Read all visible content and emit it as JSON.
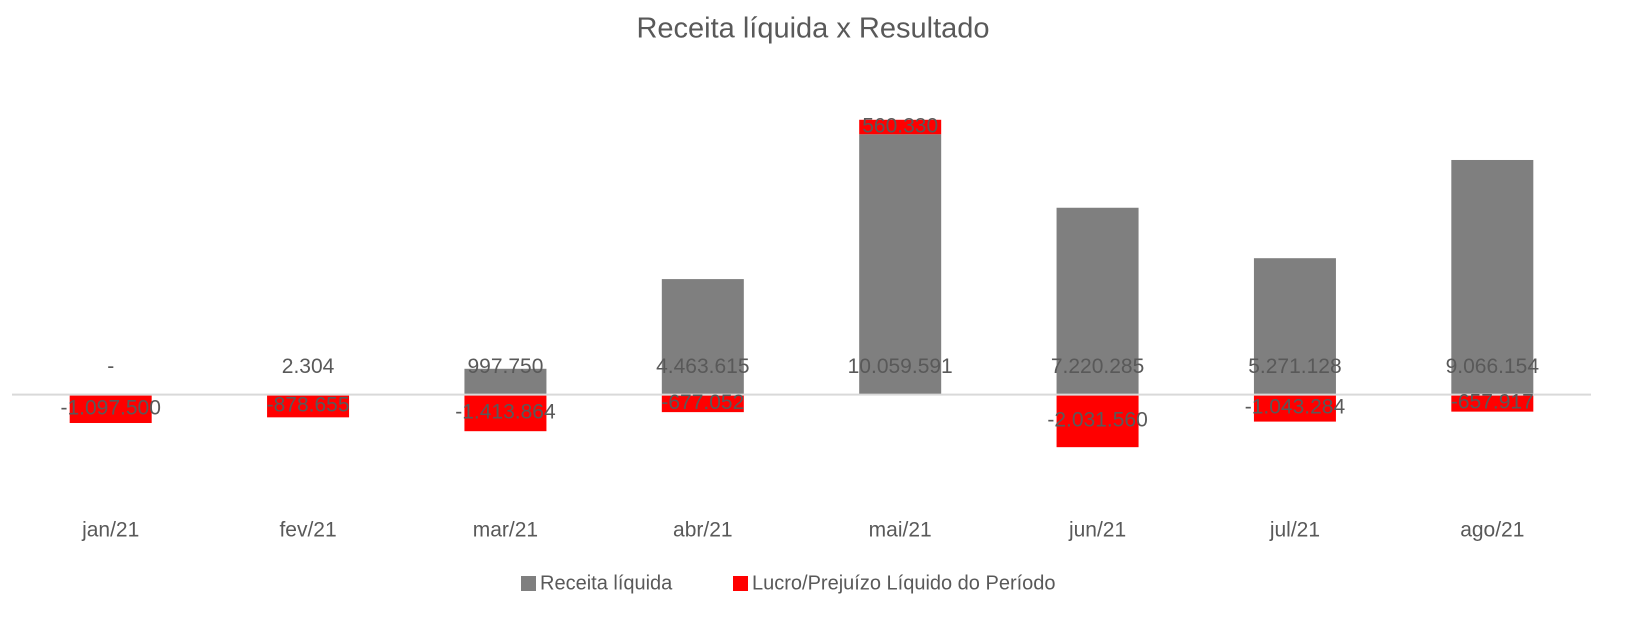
{
  "chart_data": {
    "type": "stacked_bar",
    "title": "Receita líquida x Resultado",
    "categories": [
      "jan/21",
      "fev/21",
      "mar/21",
      "abr/21",
      "mai/21",
      "jun/21",
      "jul/21",
      "ago/21"
    ],
    "series": [
      {
        "name": "Receita líquida",
        "color": "#7f7f7f",
        "values": [
          0,
          2304,
          997750,
          4463615,
          10059591,
          7220285,
          5271128,
          9066154
        ],
        "value_labels": [
          "-",
          "2.304",
          "997.750",
          "4.463.615",
          "10.059.591",
          "7.220.285",
          "5.271.128",
          "9.066.154"
        ]
      },
      {
        "name": "Lucro/Prejuízo Líquido do Período",
        "color": "#ff0000",
        "values": [
          -1097500,
          -878655,
          -1413864,
          -677052,
          560330,
          -2031560,
          -1043284,
          -657917
        ],
        "value_labels": [
          "-1.097.500",
          "-878.655",
          "-1.413.864",
          "-677.052",
          "560.330",
          "-2.031.560",
          "-1.043.284",
          "-657.917"
        ]
      }
    ],
    "ylim": [
      -3300000,
      11500000
    ],
    "legend": "bottom"
  }
}
